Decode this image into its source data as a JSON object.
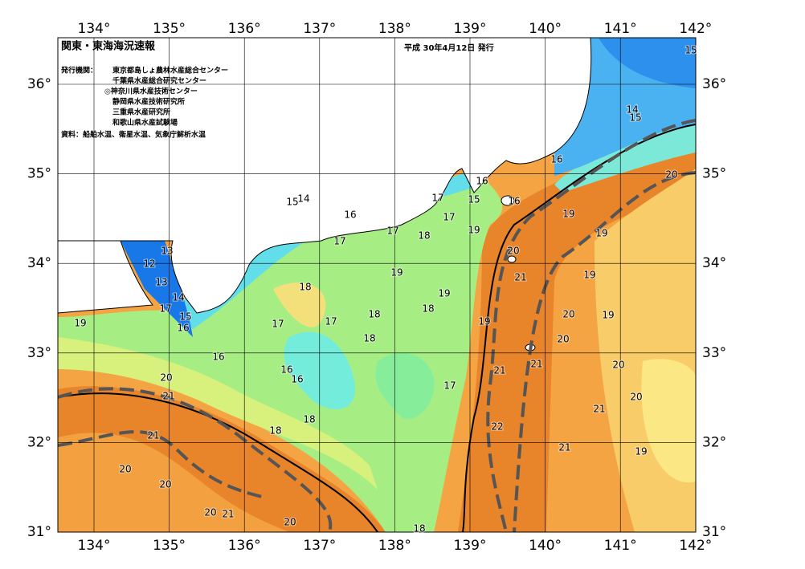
{
  "header": {
    "title": "関東・東海海況速報",
    "date": "平成 30年4月12日 発行",
    "issuer_label": "発行機関：",
    "issuers": [
      "東京都島しょ農林水産総合センター",
      "千葉県水産総合研究センター",
      "◎神奈川県水産技術センター",
      "静岡県水産技術研究所",
      "三重県水産研究所",
      "和歌山県水産試験場"
    ],
    "source": "資料：船舶水温、衛星水温、気象庁解析水温"
  },
  "map": {
    "lon_ticks": [
      {
        "value": 134,
        "label": "134°"
      },
      {
        "value": 135,
        "label": "135°"
      },
      {
        "value": 136,
        "label": "136°"
      },
      {
        "value": 137,
        "label": "137°"
      },
      {
        "value": 138,
        "label": "138°"
      },
      {
        "value": 139,
        "label": "139°"
      },
      {
        "value": 140,
        "label": "140°"
      },
      {
        "value": 141,
        "label": "141°"
      },
      {
        "value": 142,
        "label": "142°"
      }
    ],
    "lat_ticks": [
      {
        "value": 36,
        "label": "36°"
      },
      {
        "value": 35,
        "label": "35°"
      },
      {
        "value": 34,
        "label": "34°"
      },
      {
        "value": 33,
        "label": "33°"
      },
      {
        "value": 32,
        "label": "32°"
      },
      {
        "value": 31,
        "label": "31°"
      }
    ],
    "contour_labels": [
      15,
      14,
      15,
      16,
      20,
      16,
      15,
      16,
      17,
      15,
      14,
      16,
      19,
      17,
      19,
      17,
      18,
      19,
      17,
      13,
      20,
      12,
      19,
      21,
      19,
      13,
      18,
      19,
      14,
      18,
      17,
      15,
      18,
      20,
      19,
      19,
      16,
      17,
      17,
      19,
      18,
      20,
      16,
      21,
      20,
      16,
      21,
      16,
      20,
      17,
      21,
      20,
      21,
      18,
      22,
      18,
      21,
      21,
      19,
      20,
      20,
      20,
      21,
      20,
      18
    ]
  }
}
